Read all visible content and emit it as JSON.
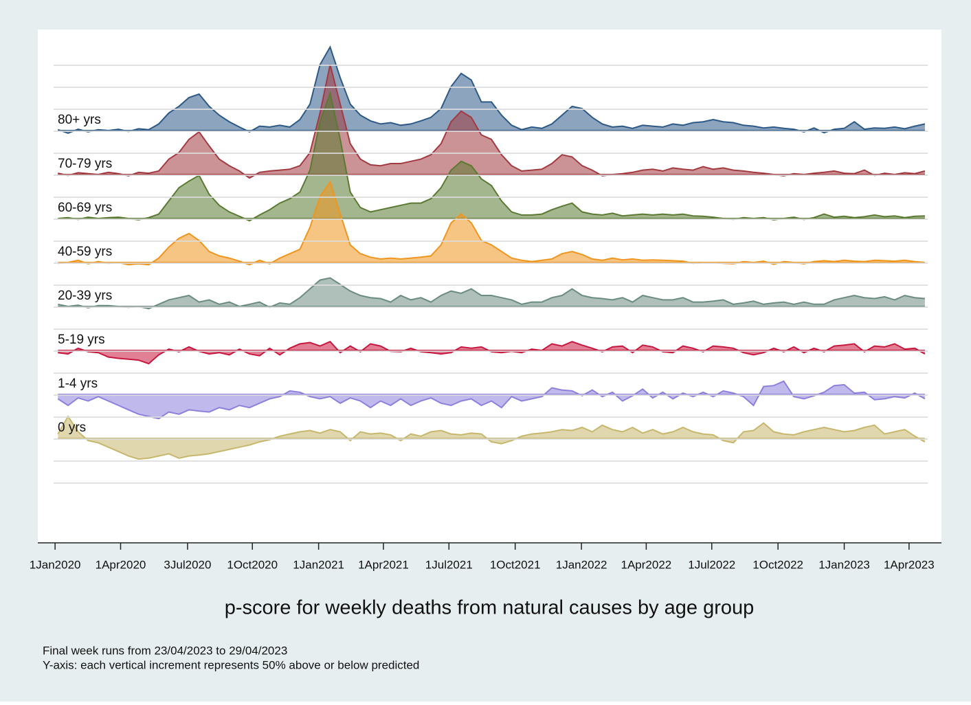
{
  "chart_data": {
    "type": "area",
    "title": "p-score for weekly deaths from natural causes by age group",
    "notes": [
      "Final week runs from 23/04/2023 to 29/04/2023",
      "Y-axis: each vertical increment represents 50% above or below predicted"
    ],
    "x": [
      "2020-01-05",
      "2020-01-19",
      "2020-02-02",
      "2020-02-16",
      "2020-03-01",
      "2020-03-15",
      "2020-03-29",
      "2020-04-12",
      "2020-04-26",
      "2020-05-10",
      "2020-05-24",
      "2020-06-07",
      "2020-06-21",
      "2020-07-05",
      "2020-07-19",
      "2020-08-02",
      "2020-08-16",
      "2020-08-30",
      "2020-09-13",
      "2020-09-27",
      "2020-10-11",
      "2020-10-25",
      "2020-11-08",
      "2020-11-22",
      "2020-12-06",
      "2020-12-20",
      "2021-01-03",
      "2021-01-17",
      "2021-01-31",
      "2021-02-14",
      "2021-02-28",
      "2021-03-14",
      "2021-03-28",
      "2021-04-11",
      "2021-04-25",
      "2021-05-09",
      "2021-05-23",
      "2021-06-06",
      "2021-06-20",
      "2021-07-04",
      "2021-07-18",
      "2021-08-01",
      "2021-08-15",
      "2021-08-29",
      "2021-09-12",
      "2021-09-26",
      "2021-10-10",
      "2021-10-24",
      "2021-11-07",
      "2021-11-21",
      "2021-12-05",
      "2021-12-19",
      "2022-01-02",
      "2022-01-16",
      "2022-01-30",
      "2022-02-13",
      "2022-02-27",
      "2022-03-13",
      "2022-03-27",
      "2022-04-10",
      "2022-04-24",
      "2022-05-08",
      "2022-05-22",
      "2022-06-05",
      "2022-06-19",
      "2022-07-03",
      "2022-07-17",
      "2022-07-31",
      "2022-08-14",
      "2022-08-28",
      "2022-09-11",
      "2022-09-25",
      "2022-10-09",
      "2022-10-23",
      "2022-11-06",
      "2022-11-20",
      "2022-12-04",
      "2022-12-18",
      "2023-01-01",
      "2023-01-15",
      "2023-01-29",
      "2023-02-12",
      "2023-02-26",
      "2023-03-12",
      "2023-03-26",
      "2023-04-09",
      "2023-04-23"
    ],
    "xlim": [
      "2019-12-08",
      "2023-05-16"
    ],
    "xticks": [
      {
        "value": "2020-01-01",
        "label": "1Jan2020"
      },
      {
        "value": "2020-04-01",
        "label": "1Apr2020"
      },
      {
        "value": "2020-07-03",
        "label": "3Jul2020"
      },
      {
        "value": "2020-10-01",
        "label": "1Oct2020"
      },
      {
        "value": "2021-01-01",
        "label": "1Jan2021"
      },
      {
        "value": "2021-04-01",
        "label": "1Apr2021"
      },
      {
        "value": "2021-07-01",
        "label": "1Jul2021"
      },
      {
        "value": "2021-10-01",
        "label": "1Oct2021"
      },
      {
        "value": "2022-01-01",
        "label": "1Jan2022"
      },
      {
        "value": "2022-04-01",
        "label": "1Apr2022"
      },
      {
        "value": "2022-07-01",
        "label": "1Jul2022"
      },
      {
        "value": "2022-10-01",
        "label": "1Oct2022"
      },
      {
        "value": "2023-01-01",
        "label": "1Jan2023"
      },
      {
        "value": "2023-04-01",
        "label": "1Apr2023"
      }
    ],
    "series": [
      {
        "name": "80+ yrs",
        "color": "#2d5987",
        "values": [
          2,
          -6,
          3,
          -3,
          2,
          0,
          3,
          -2,
          4,
          2,
          15,
          40,
          55,
          75,
          83,
          55,
          35,
          20,
          8,
          -3,
          10,
          8,
          12,
          8,
          25,
          60,
          150,
          190,
          120,
          60,
          35,
          22,
          15,
          18,
          12,
          15,
          22,
          30,
          50,
          100,
          130,
          115,
          65,
          65,
          35,
          12,
          2,
          8,
          5,
          15,
          35,
          55,
          50,
          30,
          15,
          8,
          10,
          5,
          12,
          10,
          8,
          15,
          12,
          18,
          20,
          25,
          20,
          18,
          12,
          10,
          6,
          8,
          5,
          3,
          -3,
          6,
          -5,
          3,
          5,
          20,
          3,
          6,
          5,
          8,
          4,
          10,
          15
        ]
      },
      {
        "name": "70-79 yrs",
        "color": "#a33a40",
        "values": [
          3,
          -2,
          4,
          2,
          0,
          5,
          2,
          -3,
          5,
          3,
          8,
          35,
          50,
          80,
          97,
          65,
          35,
          20,
          8,
          -8,
          5,
          8,
          10,
          12,
          20,
          50,
          140,
          250,
          160,
          70,
          35,
          22,
          20,
          25,
          25,
          30,
          35,
          45,
          70,
          120,
          144,
          130,
          90,
          80,
          45,
          20,
          8,
          10,
          12,
          25,
          45,
          40,
          20,
          10,
          -3,
          0,
          2,
          5,
          10,
          12,
          8,
          15,
          12,
          10,
          18,
          12,
          15,
          10,
          8,
          5,
          3,
          0,
          -3,
          2,
          0,
          3,
          5,
          8,
          3,
          2,
          10,
          -2,
          3,
          0,
          4,
          2,
          8
        ]
      },
      {
        "name": "60-69 yrs",
        "color": "#5a7a32",
        "values": [
          0,
          2,
          -2,
          3,
          0,
          2,
          3,
          0,
          -3,
          2,
          10,
          40,
          70,
          85,
          98,
          55,
          30,
          15,
          5,
          -5,
          8,
          20,
          35,
          45,
          60,
          110,
          220,
          285,
          180,
          60,
          25,
          15,
          20,
          25,
          30,
          35,
          35,
          45,
          70,
          110,
          130,
          120,
          90,
          75,
          40,
          15,
          8,
          8,
          10,
          20,
          28,
          35,
          15,
          10,
          8,
          12,
          6,
          8,
          10,
          8,
          10,
          8,
          10,
          6,
          5,
          3,
          0,
          -2,
          2,
          0,
          2,
          -3,
          0,
          3,
          -2,
          2,
          10,
          3,
          5,
          2,
          4,
          8,
          4,
          6,
          2,
          5,
          6
        ]
      },
      {
        "name": "40-59 yrs",
        "color": "#f0951e",
        "values": [
          -2,
          0,
          5,
          -3,
          2,
          -2,
          0,
          -5,
          -3,
          -5,
          10,
          35,
          55,
          66,
          50,
          25,
          15,
          10,
          3,
          -5,
          5,
          -3,
          10,
          20,
          30,
          80,
          150,
          183,
          110,
          40,
          20,
          12,
          8,
          10,
          8,
          10,
          12,
          15,
          40,
          90,
          110,
          90,
          50,
          40,
          25,
          10,
          5,
          2,
          5,
          8,
          20,
          25,
          18,
          8,
          5,
          10,
          6,
          8,
          5,
          6,
          5,
          4,
          3,
          -2,
          0,
          0,
          -2,
          -3,
          2,
          0,
          3,
          -4,
          2,
          0,
          -3,
          2,
          4,
          2,
          5,
          3,
          2,
          5,
          4,
          3,
          5,
          2,
          0
        ]
      },
      {
        "name": "20-39 yrs",
        "color": "#6b8c80",
        "values": [
          5,
          0,
          3,
          -3,
          2,
          2,
          0,
          -2,
          0,
          -5,
          5,
          15,
          20,
          25,
          10,
          15,
          5,
          10,
          0,
          5,
          10,
          -2,
          8,
          5,
          20,
          40,
          60,
          65,
          50,
          35,
          25,
          20,
          18,
          10,
          25,
          15,
          20,
          10,
          25,
          35,
          30,
          40,
          25,
          25,
          20,
          15,
          5,
          10,
          10,
          20,
          25,
          40,
          25,
          20,
          18,
          15,
          20,
          10,
          25,
          20,
          15,
          15,
          20,
          10,
          10,
          12,
          15,
          5,
          8,
          12,
          5,
          8,
          10,
          5,
          10,
          5,
          5,
          15,
          20,
          25,
          20,
          18,
          22,
          15,
          25,
          20,
          18
        ]
      },
      {
        "name": "5-19 yrs",
        "color": "#c8173e",
        "values": [
          -5,
          -8,
          5,
          -3,
          -5,
          -15,
          -18,
          -20,
          -22,
          -30,
          -10,
          3,
          -3,
          8,
          -2,
          -8,
          -5,
          -10,
          3,
          -8,
          -12,
          5,
          -10,
          5,
          15,
          18,
          10,
          20,
          -5,
          10,
          -3,
          15,
          10,
          -2,
          -3,
          5,
          -3,
          -5,
          -8,
          -5,
          8,
          5,
          8,
          -3,
          -5,
          -2,
          -5,
          3,
          0,
          15,
          10,
          20,
          12,
          5,
          -3,
          8,
          10,
          -5,
          12,
          8,
          -3,
          -5,
          10,
          5,
          -3,
          10,
          8,
          5,
          -5,
          -10,
          -5,
          5,
          -3,
          8,
          -5,
          5,
          -3,
          10,
          12,
          15,
          -3,
          10,
          8,
          15,
          3,
          5,
          -8
        ]
      },
      {
        "name": "1-4 yrs",
        "color": "#8d80dc",
        "values": [
          -10,
          -25,
          -8,
          -15,
          -5,
          -15,
          -25,
          -35,
          -45,
          -50,
          -55,
          -40,
          -45,
          -35,
          -38,
          -40,
          -30,
          -35,
          -25,
          -30,
          -20,
          -10,
          -5,
          8,
          5,
          -5,
          -10,
          -5,
          -20,
          -8,
          -15,
          -30,
          -15,
          -25,
          -10,
          -25,
          -15,
          -8,
          -20,
          -25,
          -15,
          -10,
          -25,
          -15,
          -30,
          -5,
          -15,
          -10,
          -5,
          15,
          10,
          8,
          -3,
          10,
          -5,
          5,
          -15,
          -3,
          12,
          -8,
          5,
          -10,
          3,
          -5,
          5,
          -5,
          8,
          3,
          -5,
          -25,
          18,
          20,
          30,
          -5,
          -10,
          -3,
          5,
          20,
          22,
          3,
          5,
          -12,
          -10,
          -5,
          -8,
          3,
          -10
        ]
      },
      {
        "name": "0 yrs",
        "color": "#c6b76c",
        "values": [
          10,
          50,
          15,
          -5,
          -10,
          -20,
          -30,
          -40,
          -47,
          -45,
          -40,
          -35,
          -45,
          -40,
          -38,
          -35,
          -30,
          -25,
          -20,
          -15,
          -8,
          -3,
          5,
          10,
          15,
          18,
          12,
          20,
          15,
          -5,
          15,
          10,
          12,
          8,
          -5,
          10,
          5,
          15,
          18,
          10,
          8,
          12,
          10,
          -8,
          -12,
          -5,
          5,
          10,
          12,
          15,
          20,
          18,
          25,
          15,
          30,
          20,
          15,
          25,
          12,
          20,
          10,
          15,
          25,
          15,
          10,
          8,
          -5,
          -10,
          15,
          18,
          35,
          15,
          10,
          8,
          15,
          20,
          25,
          20,
          15,
          18,
          25,
          30,
          10,
          15,
          20,
          5,
          -8
        ]
      }
    ]
  }
}
